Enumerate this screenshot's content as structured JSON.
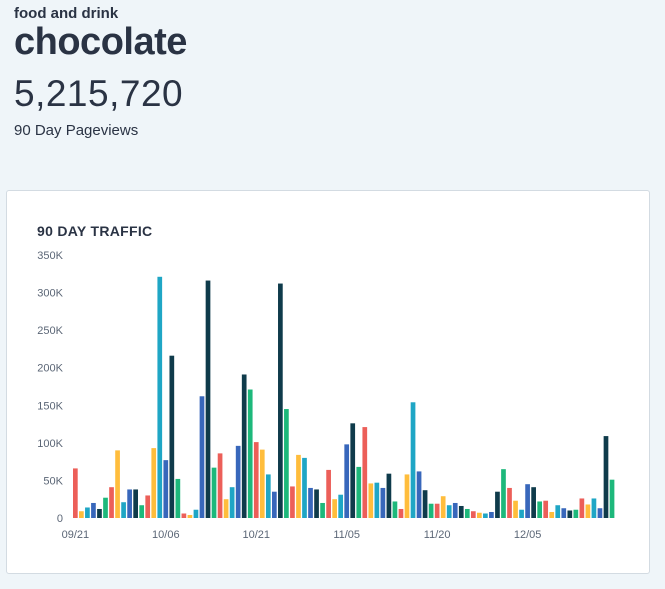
{
  "header": {
    "category": "food and drink",
    "title": "chocolate",
    "pageviews": "5,215,720",
    "metric_label": "90 Day Pageviews"
  },
  "card": {
    "title": "90 DAY TRAFFIC"
  },
  "colors": {
    "palette": [
      "#ec5f59",
      "#ffbd3c",
      "#1fa6c5",
      "#3867bb",
      "#0f3b4b",
      "#1db87b"
    ],
    "background": "#eff5f9",
    "card": "#ffffff"
  },
  "chart_data": {
    "type": "bar",
    "title": "90 DAY TRAFFIC",
    "xlabel": "",
    "ylabel": "",
    "ylim": [
      0,
      350000
    ],
    "yticks": [
      0,
      50000,
      100000,
      150000,
      200000,
      250000,
      300000,
      350000
    ],
    "ytick_labels": [
      "0",
      "50K",
      "100K",
      "150K",
      "200K",
      "250K",
      "300K",
      "350K"
    ],
    "xtick_labels": [
      "09/21",
      "10/06",
      "10/21",
      "11/05",
      "11/20",
      "12/05"
    ],
    "xtick_indices": [
      0,
      15,
      30,
      45,
      60,
      75
    ],
    "grid": false,
    "values": [
      66000,
      9000,
      14000,
      20000,
      12000,
      27000,
      41000,
      90000,
      21000,
      38000,
      38000,
      17000,
      30000,
      93000,
      321000,
      77000,
      216000,
      52000,
      6000,
      4000,
      11000,
      162000,
      316000,
      67000,
      86000,
      25000,
      41000,
      96000,
      191000,
      171000,
      101000,
      91000,
      58000,
      35000,
      312000,
      145000,
      42000,
      84000,
      80000,
      40000,
      38000,
      20000,
      64000,
      25000,
      31000,
      98000,
      126000,
      68000,
      121000,
      46000,
      47000,
      40000,
      59000,
      22000,
      12000,
      58000,
      154000,
      62000,
      37000,
      19000,
      19000,
      29000,
      17000,
      20000,
      16000,
      12000,
      9000,
      7000,
      6000,
      8000,
      35000,
      65000,
      40000,
      23000,
      11000,
      45000,
      41000,
      22000,
      23000,
      8000,
      17000,
      13000,
      10000,
      11000,
      26000,
      18000,
      26000,
      13000,
      109000,
      51000
    ]
  }
}
